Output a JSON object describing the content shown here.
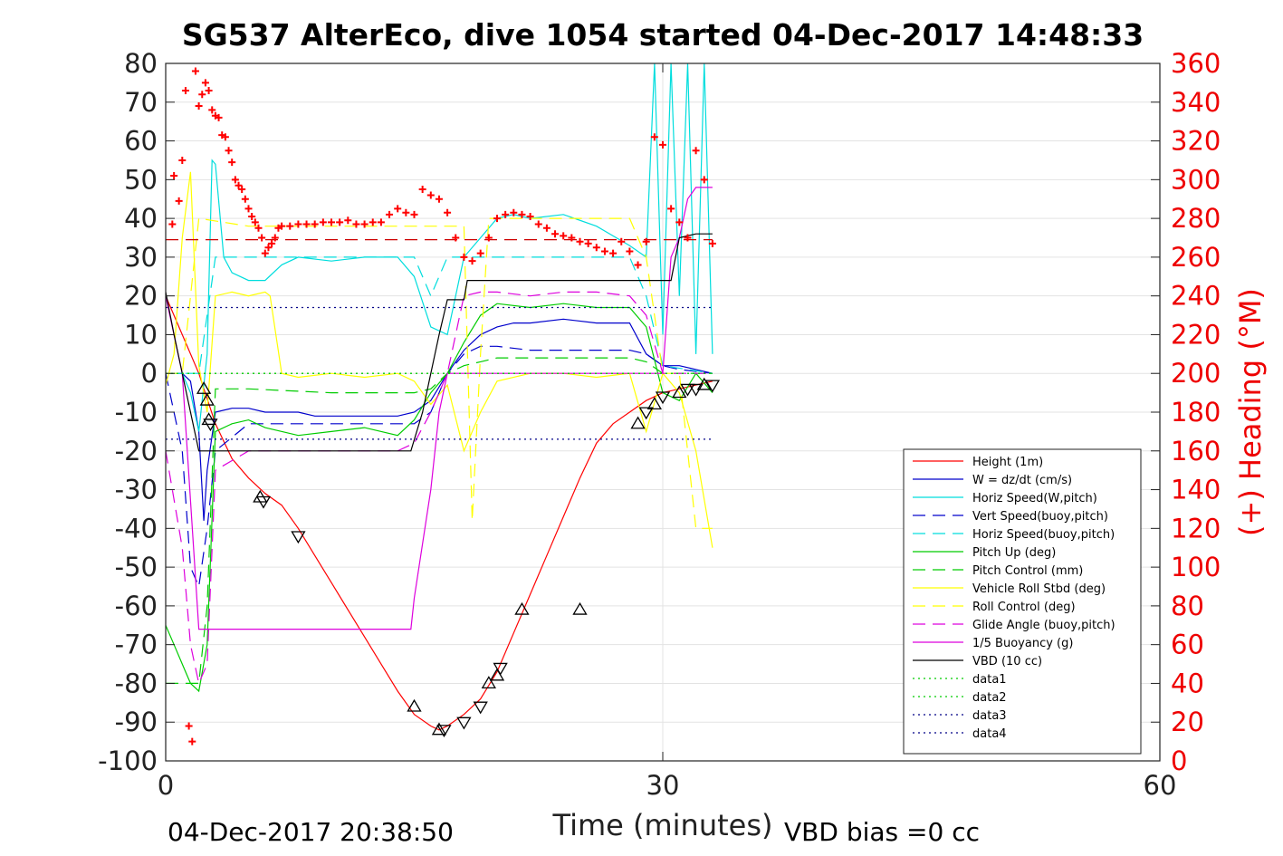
{
  "chart_data": {
    "type": "line",
    "title": "SG537 AlterEco, dive 1054 started 04-Dec-2017 14:48:33",
    "xlabel": "Time (minutes)",
    "ylabel": "",
    "y2label": "(+) Heading (°M)",
    "xlim": [
      0,
      60
    ],
    "ylim": [
      -100,
      80
    ],
    "y2lim": [
      0,
      360
    ],
    "xticks": [
      "0",
      "30",
      "60"
    ],
    "yticks": [
      "80",
      "70",
      "60",
      "50",
      "40",
      "30",
      "20",
      "10",
      "0",
      "-10",
      "-20",
      "-30",
      "-40",
      "-50",
      "-60",
      "-70",
      "-80",
      "-90",
      "-100"
    ],
    "y2ticks": [
      "360",
      "340",
      "320",
      "300",
      "280",
      "260",
      "240",
      "220",
      "200",
      "180",
      "160",
      "140",
      "120",
      "100",
      "80",
      "60",
      "40",
      "20",
      "0"
    ],
    "footer_left": "04-Dec-2017 20:38:50",
    "footer_right": "VBD bias =0 cc",
    "grid": true,
    "legend_position": "lower-right",
    "series": [
      {
        "name": "Height (1m)",
        "color": "#ff0000",
        "style": "solid",
        "x": [
          0,
          2,
          3,
          4,
          5,
          6,
          7,
          8,
          9,
          10,
          11,
          12,
          13,
          14,
          15,
          16,
          16.5,
          17,
          18,
          19,
          20,
          21,
          22,
          23,
          24,
          25,
          26,
          27,
          28,
          29,
          30,
          31,
          32,
          33
        ],
        "y": [
          20,
          0,
          -13,
          -22,
          -27,
          -31,
          -34,
          -40,
          -47,
          -54,
          -61,
          -68,
          -75,
          -82,
          -88,
          -91,
          -92,
          -91,
          -88,
          -84,
          -77,
          -67,
          -57,
          -47,
          -37,
          -27,
          -18,
          -13,
          -10,
          -7,
          -5,
          -4,
          -3,
          -2
        ]
      },
      {
        "name": "W = dz/dt (cm/s)",
        "color": "#0000cc",
        "style": "solid",
        "x": [
          0,
          1,
          1.5,
          2,
          2.3,
          2.5,
          3,
          4,
          5,
          6,
          7,
          8,
          9,
          10,
          12,
          14,
          15,
          16,
          17,
          18,
          19,
          20,
          21,
          22,
          24,
          26,
          28,
          29,
          30,
          31,
          32,
          33
        ],
        "y": [
          0,
          0,
          -2,
          -15,
          -38,
          -25,
          -10,
          -9,
          -9,
          -10,
          -10,
          -10,
          -11,
          -11,
          -11,
          -11,
          -10,
          -7,
          0,
          6,
          10,
          12,
          13,
          13,
          14,
          13,
          13,
          5,
          2,
          2,
          1,
          0
        ]
      },
      {
        "name": "Horiz Speed(W,pitch)",
        "color": "#00dddd",
        "style": "solid",
        "x": [
          0,
          1,
          1.5,
          2,
          2.5,
          2.8,
          3,
          3.5,
          4,
          5,
          6,
          7,
          8,
          10,
          12,
          14,
          15,
          16,
          17,
          18,
          19,
          20,
          21,
          22,
          24,
          26,
          28,
          29,
          29.5,
          30,
          30.5,
          31,
          31.5,
          32,
          32.5,
          33
        ],
        "y": [
          0,
          0,
          -5,
          -15,
          5,
          55,
          54,
          30,
          26,
          24,
          24,
          28,
          30,
          29,
          30,
          30,
          25,
          12,
          10,
          30,
          35,
          40,
          41,
          40,
          41,
          38,
          33,
          30,
          80,
          10,
          80,
          20,
          80,
          5,
          80,
          5
        ]
      },
      {
        "name": "Vert Speed(buoy,pitch)",
        "color": "#0000cc",
        "style": "dashed",
        "x": [
          0,
          1,
          1.5,
          2,
          2.5,
          3,
          5,
          8,
          10,
          12,
          15,
          16,
          17,
          18,
          19,
          20,
          22,
          24,
          26,
          28,
          29,
          30,
          31,
          33
        ],
        "y": [
          0,
          -20,
          -50,
          -55,
          -40,
          -20,
          -13,
          -13,
          -13,
          -13,
          -13,
          -10,
          0,
          5,
          7,
          7,
          6,
          6,
          6,
          6,
          5,
          2,
          1,
          0
        ]
      },
      {
        "name": "Horiz Speed(buoy,pitch)",
        "color": "#00dddd",
        "style": "dashed",
        "x": [
          0,
          2,
          3,
          5,
          10,
          15,
          16,
          17,
          18,
          20,
          25,
          28,
          29,
          30,
          33
        ],
        "y": [
          0,
          0,
          30,
          30,
          30,
          30,
          20,
          30,
          30,
          30,
          30,
          30,
          20,
          2,
          0
        ]
      },
      {
        "name": "Pitch Up (deg)",
        "color": "#00cc00",
        "style": "solid",
        "x": [
          0,
          0.5,
          1,
          1.5,
          2,
          2.5,
          3,
          4,
          5,
          6,
          8,
          10,
          12,
          14,
          15,
          16,
          17,
          18,
          19,
          20,
          22,
          24,
          26,
          28,
          29,
          30,
          31,
          32,
          33
        ],
        "y": [
          -65,
          -70,
          -75,
          -80,
          -82,
          -70,
          -15,
          -13,
          -12,
          -14,
          -16,
          -15,
          -14,
          -16,
          -12,
          -5,
          0,
          8,
          15,
          18,
          17,
          18,
          17,
          17,
          12,
          -5,
          -7,
          0,
          -5
        ]
      },
      {
        "name": "Pitch Control (mm)",
        "color": "#00cc00",
        "style": "dashed",
        "x": [
          0,
          2,
          2.5,
          3,
          5,
          10,
          15,
          16,
          17,
          18,
          19,
          20,
          25,
          28,
          29,
          30,
          33
        ],
        "y": [
          -80,
          -80,
          -60,
          -4,
          -4,
          -5,
          -5,
          -4,
          0,
          2,
          3,
          4,
          4,
          4,
          3,
          0,
          0
        ]
      },
      {
        "name": "Vehicle Roll Stbd (deg)",
        "color": "#ffff00",
        "style": "solid",
        "x": [
          0,
          0.5,
          1,
          1.5,
          2,
          2.5,
          3,
          4,
          5,
          6,
          6.3,
          7,
          8,
          10,
          12,
          14,
          15,
          16,
          17,
          18,
          19,
          20,
          22,
          24,
          26,
          28,
          29,
          30,
          31,
          32,
          33
        ],
        "y": [
          -3,
          5,
          35,
          52,
          2,
          -10,
          20,
          21,
          20,
          21,
          20,
          0,
          -1,
          0,
          -1,
          0,
          -2,
          -8,
          -3,
          -20,
          -10,
          -2,
          0,
          0,
          -1,
          0,
          -15,
          0,
          -5,
          -20,
          -45
        ]
      },
      {
        "name": "Roll Control (deg)",
        "color": "#ffff00",
        "style": "dashed",
        "x": [
          0,
          1,
          2,
          5,
          10,
          15,
          17,
          18,
          18.5,
          19,
          19.5,
          20,
          25,
          28,
          29,
          30,
          31,
          32,
          33
        ],
        "y": [
          0,
          0,
          40,
          38,
          38,
          38,
          38,
          38,
          -38,
          5,
          40,
          40,
          40,
          40,
          30,
          0,
          0,
          -40,
          -40
        ]
      },
      {
        "name": "Glide Angle (buoy,pitch)",
        "color": "#dd00dd",
        "style": "dashed",
        "x": [
          0,
          1,
          1.5,
          2,
          2.5,
          3,
          5,
          8,
          10,
          12,
          14,
          15,
          16,
          17,
          18,
          19,
          20,
          22,
          24,
          26,
          28,
          29,
          30,
          31,
          33
        ],
        "y": [
          -20,
          -45,
          -70,
          -80,
          -75,
          -25,
          -20,
          -20,
          -20,
          -20,
          -20,
          -18,
          -10,
          0,
          20,
          21,
          21,
          20,
          21,
          21,
          20,
          15,
          0,
          0,
          0
        ]
      },
      {
        "name": "1/5 Buoyancy (g)",
        "color": "#dd00dd",
        "style": "solid",
        "x": [
          0,
          1,
          2,
          5,
          10,
          14.8,
          15,
          16,
          16.5,
          17,
          17.5,
          18,
          19,
          20,
          22,
          24,
          26,
          28,
          29,
          30,
          30.5,
          31,
          31.5,
          32,
          33
        ],
        "y": [
          20,
          0,
          -66,
          -66,
          -66,
          -66,
          -58,
          -30,
          -10,
          0,
          0,
          0,
          0,
          0,
          0,
          0,
          0,
          0,
          0,
          0,
          30,
          35,
          45,
          48,
          48
        ]
      },
      {
        "name": "VBD (10 cc)",
        "color": "#000000",
        "style": "solid",
        "x": [
          0,
          0.5,
          1,
          1.5,
          2,
          5,
          10,
          14,
          14.8,
          15.5,
          16,
          16.5,
          17,
          17.5,
          18,
          18.2,
          19,
          20,
          25,
          28,
          29,
          30,
          30.5,
          31,
          32,
          33
        ],
        "y": [
          21,
          10,
          0,
          -10,
          -20,
          -20,
          -20,
          -20,
          -20,
          -10,
          0,
          10,
          19,
          19,
          19,
          24,
          24,
          24,
          24,
          24,
          24,
          24,
          24,
          35,
          36,
          36
        ]
      },
      {
        "name": "data1",
        "color": "#00cc00",
        "style": "dotted",
        "x": [
          0,
          33
        ],
        "y": [
          0,
          0
        ]
      },
      {
        "name": "data2",
        "color": "#00cc00",
        "style": "dotted",
        "x": [
          0,
          33
        ],
        "y": [
          0,
          0
        ]
      },
      {
        "name": "data3",
        "color": "#000088",
        "style": "dotted",
        "x": [
          0,
          33
        ],
        "y": [
          -17,
          -17
        ]
      },
      {
        "name": "data4",
        "color": "#000088",
        "style": "dotted",
        "x": [
          0,
          33
        ],
        "y": [
          17,
          17
        ]
      }
    ],
    "heading_ref": {
      "color": "#cc0000",
      "style": "dashed",
      "x": [
        0,
        33
      ],
      "y2": [
        269,
        269
      ]
    },
    "heading_points": {
      "color": "#ff0000",
      "marker": "+",
      "x": [
        0.4,
        0.5,
        0.8,
        1,
        1.2,
        1.4,
        1.6,
        1.8,
        2,
        2.2,
        2.4,
        2.6,
        2.8,
        3,
        3.2,
        3.4,
        3.6,
        3.8,
        4,
        4.2,
        4.4,
        4.6,
        4.8,
        5,
        5.2,
        5.4,
        5.6,
        5.8,
        6,
        6.2,
        6.4,
        6.6,
        6.8,
        7,
        7.5,
        8,
        8.5,
        9,
        9.5,
        10,
        10.5,
        11,
        11.5,
        12,
        12.5,
        13,
        13.5,
        14,
        14.5,
        15,
        15.5,
        16,
        16.5,
        17,
        17.5,
        18,
        18.5,
        19,
        19.5,
        20,
        20.5,
        21,
        21.5,
        22,
        22.5,
        23,
        23.5,
        24,
        24.5,
        25,
        25.5,
        26,
        26.5,
        27,
        27.5,
        28,
        28.5,
        29,
        29.5,
        30,
        30.5,
        31,
        31.5,
        32,
        32.5,
        33
      ],
      "y2": [
        277,
        302,
        289,
        310,
        346,
        18,
        10,
        356,
        338,
        344,
        350,
        346,
        336,
        333,
        332,
        323,
        322,
        315,
        309,
        300,
        297,
        295,
        290,
        285,
        281,
        278,
        275,
        270,
        262,
        265,
        267,
        270,
        275,
        276,
        276,
        277,
        277,
        277,
        278,
        278,
        278,
        279,
        277,
        277,
        278,
        278,
        282,
        285,
        283,
        282,
        295,
        292,
        290,
        283,
        270,
        260,
        258,
        262,
        270,
        280,
        282,
        283,
        282,
        281,
        277,
        275,
        272,
        271,
        270,
        268,
        267,
        265,
        263,
        262,
        268,
        263,
        256,
        268,
        322,
        318,
        285,
        278,
        270,
        315,
        300,
        267
      ]
    },
    "markers": {
      "color": "#000000",
      "up_triangles": {
        "x": [
          2.3,
          2.5,
          2.6,
          5.7,
          15,
          16.5,
          19.5,
          20,
          21.5,
          25,
          28.5,
          29.5,
          31,
          32.5
        ],
        "y": [
          -4,
          -7,
          -12,
          -32,
          -86,
          -92,
          -80,
          -78,
          -61,
          -61,
          -13,
          -8,
          -5,
          -3
        ]
      },
      "down_triangles": {
        "x": [
          2.7,
          5.9,
          8,
          16.8,
          18,
          19,
          20.2,
          29,
          30,
          31.5,
          32,
          33
        ],
        "y": [
          -13,
          -33,
          -42,
          -92,
          -90,
          -86,
          -76,
          -10,
          -6,
          -4,
          -4,
          -3
        ]
      }
    }
  }
}
